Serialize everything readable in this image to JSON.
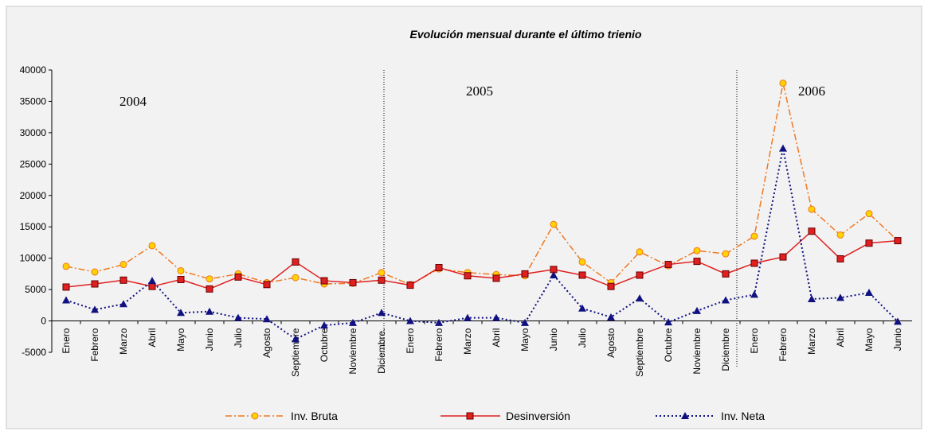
{
  "chart_data": {
    "type": "line",
    "title": "Evolución mensual durante el último trienio",
    "annotations": [
      "2004",
      "2005",
      "2006"
    ],
    "categories": [
      "Enero",
      "Febrero",
      "Marzo",
      "Abril",
      "Mayo",
      "Junio",
      "Julio",
      "Agosto",
      "Septiembre",
      "Octubre",
      "Noviembre",
      "Diciembre.",
      "Enero",
      "Febrero",
      "Marzo",
      "Abril",
      "Mayo",
      "Junio",
      "Julio",
      "Agosto",
      "Septiembre",
      "Octubre",
      "Noviembre",
      "Diciembre",
      "Enero",
      "Febrero",
      "Marzo",
      "Abril",
      "Mayo",
      "Junio"
    ],
    "series": [
      {
        "name": "Inv. Bruta",
        "color": "#f07820",
        "values": [
          8700,
          7800,
          9000,
          12000,
          8000,
          6700,
          7500,
          6100,
          6900,
          5900,
          6000,
          7700,
          5800,
          8300,
          7700,
          7400,
          7200,
          15400,
          9400,
          6100,
          11000,
          8800,
          11200,
          10700,
          13500,
          37900,
          17800,
          13700,
          17100,
          12800
        ]
      },
      {
        "name": "Desinversión",
        "color": "#e02020",
        "values": [
          5400,
          5900,
          6500,
          5500,
          6600,
          5100,
          7000,
          5800,
          9400,
          6400,
          6100,
          6500,
          5700,
          8500,
          7200,
          6800,
          7500,
          8200,
          7300,
          5500,
          7300,
          9000,
          9500,
          7500,
          9200,
          10200,
          14300,
          9900,
          12400,
          12800
        ]
      },
      {
        "name": "Inv. Neta",
        "color": "#101080",
        "values": [
          3300,
          1800,
          2700,
          6400,
          1300,
          1500,
          500,
          300,
          -2900,
          -700,
          -300,
          1300,
          0,
          -300,
          500,
          500,
          -300,
          7300,
          2000,
          600,
          3600,
          -200,
          1600,
          3300,
          4200,
          27500,
          3500,
          3700,
          4500,
          -100
        ]
      }
    ],
    "ylim": [
      -5000,
      40000
    ],
    "yticks": [
      -5000,
      0,
      5000,
      10000,
      15000,
      20000,
      25000,
      30000,
      35000,
      40000
    ]
  }
}
